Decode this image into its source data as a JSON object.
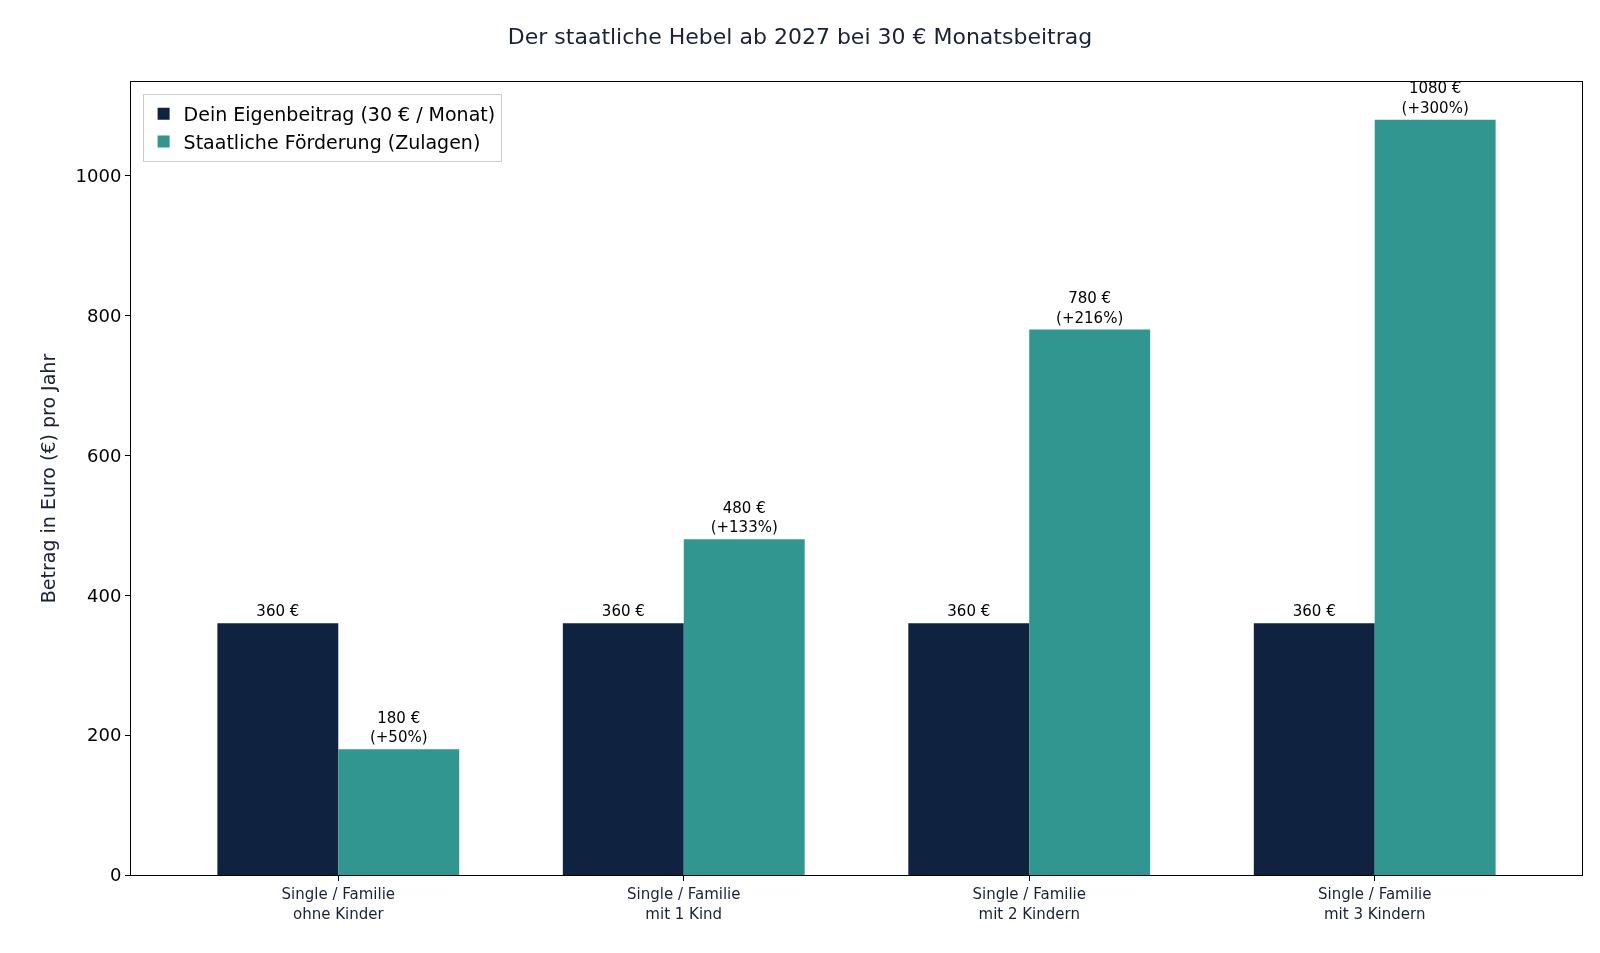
{
  "chart_data": {
    "type": "bar",
    "title": "Der staatliche Hebel ab 2027 bei 30 € Monatsbeitrag",
    "ylabel": "Betrag in Euro (€) pro Jahr",
    "categories": [
      "Single / Familie\nohne Kinder",
      "Single / Familie\nmit 1 Kind",
      "Single / Familie\nmit 2 Kindern",
      "Single / Familie\nmit 3 Kindern"
    ],
    "series": [
      {
        "name": "Dein Eigenbeitrag (30 € / Monat)",
        "color": "#0f2340",
        "values": [
          360,
          360,
          360,
          360
        ],
        "value_labels": [
          "360 €",
          "360 €",
          "360 €",
          "360 €"
        ]
      },
      {
        "name": "Staatliche Förderung (Zulagen)",
        "color": "#31968f",
        "values": [
          180,
          480,
          780,
          1080
        ],
        "value_labels": [
          "180 €\n(+50%)",
          "480 €\n(+133%)",
          "780 €\n(+216%)",
          "1080 €\n(+300%)"
        ]
      }
    ],
    "ylim": [
      0,
      1134
    ],
    "yticks": [
      0,
      200,
      400,
      600,
      800,
      1000
    ],
    "legend": "top left"
  }
}
